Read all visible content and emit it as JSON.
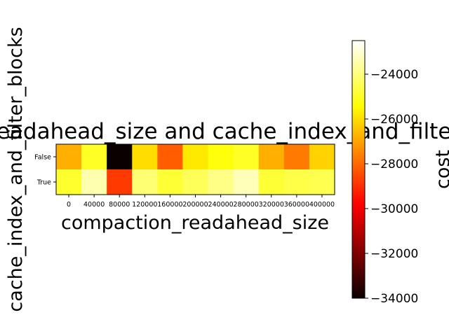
{
  "chart_data": {
    "type": "heatmap",
    "title": "compaction_readahead_size and cache_index_and_filter_blocks",
    "xlabel": "compaction_readahead_size",
    "ylabel": "cache_index_and_filter_blocks",
    "colorbar_label": "cost",
    "colormap": "hot",
    "x_categories": [
      "0",
      "40000",
      "80000",
      "120000",
      "160000",
      "200000",
      "240000",
      "280000",
      "320000",
      "360000",
      "400000"
    ],
    "y_categories": [
      "False",
      "True"
    ],
    "values": [
      [
        -26800,
        -25000,
        -34000,
        -26000,
        -28200,
        -25800,
        -25300,
        -25000,
        -26800,
        -27700,
        -26200
      ],
      [
        -24900,
        -23400,
        -28800,
        -24100,
        -24800,
        -24400,
        -23900,
        -23300,
        -24800,
        -24600,
        -24500
      ]
    ],
    "colorbar_range": [
      -34000,
      -22500
    ],
    "colorbar_ticks": [
      "−24000",
      "−26000",
      "−28000",
      "−30000",
      "−32000",
      "−34000"
    ],
    "colorbar_tick_values": [
      -24000,
      -26000,
      -28000,
      -30000,
      -32000,
      -34000
    ]
  }
}
